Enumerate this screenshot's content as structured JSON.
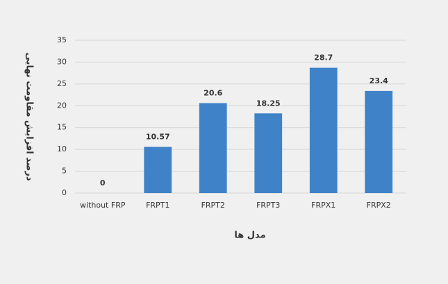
{
  "chart_data": {
    "type": "bar",
    "y_label": "درصد افزایش مقاومت نهایی",
    "x_label": "مدل ها",
    "categories": [
      "without FRP",
      "FRPT1",
      "FRPT2",
      "FRPT3",
      "FRPX1",
      "FRPX2"
    ],
    "values": [
      0,
      10.57,
      20.6,
      18.25,
      28.7,
      23.4
    ],
    "color": "#3f82c8",
    "ylim": [
      0,
      35
    ],
    "yticks": [
      0,
      5,
      10,
      15,
      20,
      25,
      30,
      35
    ],
    "grid": true
  }
}
